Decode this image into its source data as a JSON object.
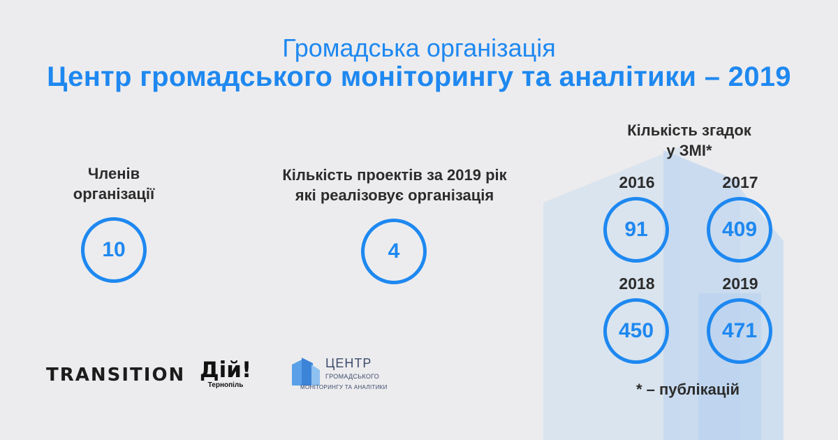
{
  "header": {
    "line1": "Громадська організація",
    "line2": "Центр громадського моніторингу та аналітики – 2019"
  },
  "members": {
    "label_line1": "Членів",
    "label_line2": "організації",
    "value": "10"
  },
  "projects": {
    "label_line1": "Кількість проектів за 2019 рік",
    "label_line2": "які реалізовує організація",
    "value": "4"
  },
  "media": {
    "label_line1": "Кількість згадок",
    "label_line2": "у ЗМІ*",
    "items": [
      {
        "year": "2016",
        "value": "91"
      },
      {
        "year": "2017",
        "value": "409"
      },
      {
        "year": "2018",
        "value": "450"
      },
      {
        "year": "2019",
        "value": "471"
      }
    ],
    "footnote": "* – публікацій"
  },
  "logos": {
    "transition": "TRANSITION",
    "diy_main": "Дій!",
    "diy_sub": "Тернопіль",
    "centr_line1": "ЦЕНТР",
    "centr_line2": "ГРОМАДСЬКОГО",
    "centr_line3": "МОНІТОРИНГУ ТА АНАЛІТИКИ"
  },
  "colors": {
    "accent": "#1e88f0",
    "text": "#2c2c2c",
    "background": "#ececee"
  }
}
